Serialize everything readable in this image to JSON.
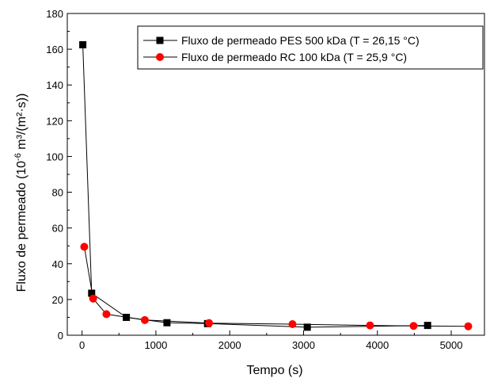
{
  "chart_data": {
    "type": "line",
    "xlabel": "Tempo (s)",
    "ylabel": {
      "prefix": "Fluxo de permeado (10",
      "exp1": "-6",
      "middle": " m³/(m²·s))"
    },
    "xlim": [
      -200,
      5450
    ],
    "ylim": [
      0,
      180
    ],
    "xticks": [
      0,
      1000,
      2000,
      3000,
      4000,
      5000
    ],
    "yticks": [
      0,
      20,
      40,
      60,
      80,
      100,
      120,
      140,
      160,
      180
    ],
    "legend_position": "top-right",
    "grid": false,
    "series": [
      {
        "name": "Fluxo de permeado PES 500 kDa (T = 26,15 °C)",
        "marker": "square",
        "color": "#000000",
        "x": [
          10,
          130,
          600,
          1150,
          1700,
          3050,
          4680
        ],
        "y": [
          162.5,
          23.5,
          10,
          7,
          6.5,
          4.5,
          5.5
        ]
      },
      {
        "name": "Fluxo de permeado RC 100 kDa (T = 25,9 °C)",
        "marker": "circle",
        "color": "#ff0000",
        "x": [
          30,
          150,
          330,
          850,
          1720,
          2850,
          3900,
          4490,
          5230
        ],
        "y": [
          49.5,
          20.5,
          11.8,
          8.5,
          6.8,
          6.2,
          5.5,
          5.2,
          5
        ]
      }
    ]
  }
}
